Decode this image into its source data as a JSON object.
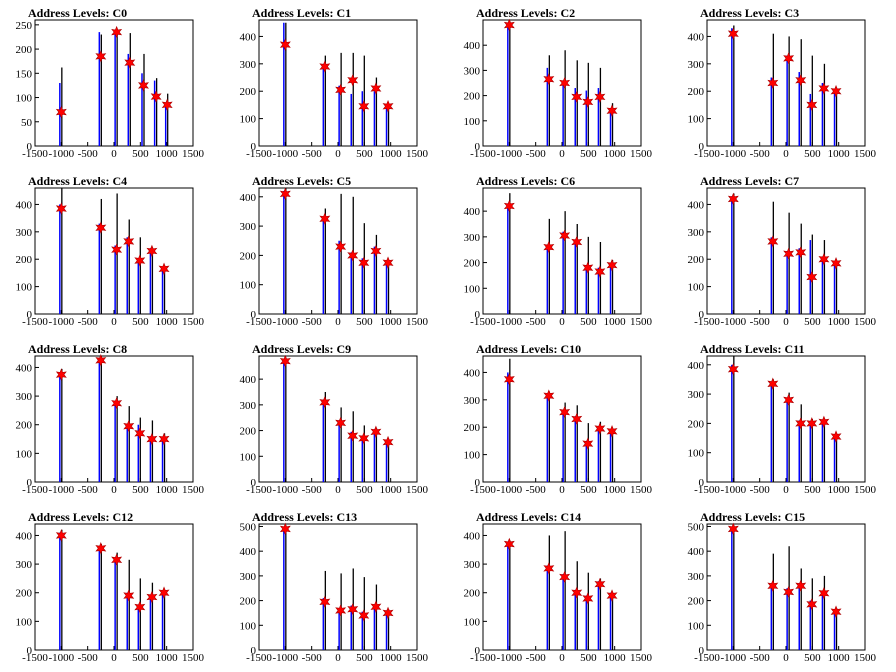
{
  "colors": {
    "hist_black": "#000000",
    "hist_blue": "#0000ff",
    "marker_fill": "#ff0000",
    "marker_stroke": "#aa0000",
    "axis": "#000000"
  },
  "chart_data": [
    {
      "type": "bar",
      "title": "Address Levels: C0",
      "xlim": [
        -1500,
        1500
      ],
      "xticks": [
        -1500,
        -1000,
        -500,
        0,
        500,
        1000,
        1500
      ],
      "ylim": [
        0,
        260
      ],
      "yticks": [
        0,
        50,
        100,
        150,
        200,
        250
      ],
      "bins_x": [
        -1000,
        -250,
        50,
        300,
        560,
        800,
        1010
      ],
      "black_values": [
        162,
        230,
        235,
        233,
        190,
        140,
        108
      ],
      "blue_values": [
        130,
        235,
        230,
        190,
        150,
        135,
        80
      ],
      "marker_values": [
        70,
        185,
        235,
        172,
        125,
        102,
        85
      ]
    },
    {
      "type": "bar",
      "title": "Address Levels: C1",
      "xlim": [
        -1500,
        1500
      ],
      "xticks": [
        -1500,
        -1000,
        -500,
        0,
        500,
        1000,
        1500
      ],
      "ylim": [
        0,
        460
      ],
      "yticks": [
        0,
        100,
        200,
        300,
        400
      ],
      "bins_x": [
        -1000,
        -250,
        50,
        280,
        490,
        720,
        950
      ],
      "black_values": [
        450,
        330,
        340,
        340,
        330,
        250,
        150
      ],
      "blue_values": [
        450,
        300,
        220,
        190,
        200,
        200,
        150
      ],
      "marker_values": [
        370,
        290,
        205,
        240,
        145,
        210,
        145
      ]
    },
    {
      "type": "bar",
      "title": "Address Levels: C2",
      "xlim": [
        -1500,
        1500
      ],
      "xticks": [
        -1500,
        -1000,
        -500,
        0,
        500,
        1000,
        1500
      ],
      "ylim": [
        0,
        500
      ],
      "yticks": [
        0,
        100,
        200,
        300,
        400
      ],
      "bins_x": [
        -1000,
        -250,
        50,
        280,
        490,
        720,
        950
      ],
      "black_values": [
        490,
        360,
        380,
        340,
        330,
        310,
        170
      ],
      "blue_values": [
        470,
        310,
        260,
        230,
        220,
        230,
        150
      ],
      "marker_values": [
        480,
        265,
        250,
        195,
        175,
        195,
        140
      ]
    },
    {
      "type": "bar",
      "title": "Address Levels: C3",
      "xlim": [
        -1500,
        1500
      ],
      "xticks": [
        -1500,
        -1000,
        -500,
        0,
        500,
        1000,
        1500
      ],
      "ylim": [
        0,
        460
      ],
      "yticks": [
        0,
        100,
        200,
        300,
        400
      ],
      "bins_x": [
        -1000,
        -250,
        50,
        280,
        490,
        720,
        950
      ],
      "black_values": [
        440,
        410,
        400,
        390,
        330,
        300,
        210
      ],
      "blue_values": [
        430,
        250,
        330,
        270,
        190,
        230,
        200
      ],
      "marker_values": [
        410,
        230,
        320,
        240,
        150,
        210,
        200
      ]
    },
    {
      "type": "bar",
      "title": "Address Levels: C4",
      "xlim": [
        -1500,
        1500
      ],
      "xticks": [
        -1500,
        -1000,
        -500,
        0,
        500,
        1000,
        1500
      ],
      "ylim": [
        0,
        460
      ],
      "yticks": [
        0,
        100,
        200,
        300,
        400
      ],
      "bins_x": [
        -1000,
        -250,
        50,
        280,
        490,
        720,
        950
      ],
      "black_values": [
        460,
        420,
        440,
        345,
        280,
        240,
        175
      ],
      "blue_values": [
        400,
        330,
        250,
        280,
        200,
        240,
        170
      ],
      "marker_values": [
        385,
        315,
        235,
        265,
        195,
        230,
        165
      ]
    },
    {
      "type": "bar",
      "title": "Address Levels: C5",
      "xlim": [
        -1500,
        1500
      ],
      "xticks": [
        -1500,
        -1000,
        -500,
        0,
        500,
        1000,
        1500
      ],
      "ylim": [
        0,
        430
      ],
      "yticks": [
        0,
        100,
        200,
        300,
        400
      ],
      "bins_x": [
        -1000,
        -250,
        50,
        280,
        490,
        720,
        950
      ],
      "black_values": [
        430,
        360,
        410,
        400,
        310,
        270,
        180
      ],
      "blue_values": [
        420,
        330,
        250,
        210,
        190,
        230,
        180
      ],
      "marker_values": [
        410,
        325,
        230,
        200,
        175,
        215,
        175
      ]
    },
    {
      "type": "bar",
      "title": "Address Levels: C6",
      "xlim": [
        -1500,
        1500
      ],
      "xticks": [
        -1500,
        -1000,
        -500,
        0,
        500,
        1000,
        1500
      ],
      "ylim": [
        0,
        490
      ],
      "yticks": [
        0,
        100,
        200,
        300,
        400
      ],
      "bins_x": [
        -1000,
        -250,
        50,
        280,
        490,
        720,
        950
      ],
      "black_values": [
        470,
        370,
        400,
        350,
        300,
        280,
        210
      ],
      "blue_values": [
        430,
        270,
        320,
        290,
        190,
        180,
        200
      ],
      "marker_values": [
        420,
        260,
        305,
        280,
        180,
        165,
        190
      ]
    },
    {
      "type": "bar",
      "title": "Address Levels: C7",
      "xlim": [
        -1500,
        1500
      ],
      "xticks": [
        -1500,
        -1000,
        -500,
        0,
        500,
        1000,
        1500
      ],
      "ylim": [
        0,
        460
      ],
      "yticks": [
        0,
        100,
        200,
        300,
        400
      ],
      "bins_x": [
        -1000,
        -250,
        50,
        280,
        490,
        720,
        950
      ],
      "black_values": [
        440,
        410,
        370,
        330,
        290,
        270,
        190
      ],
      "blue_values": [
        430,
        280,
        230,
        240,
        270,
        210,
        190
      ],
      "marker_values": [
        420,
        265,
        220,
        225,
        135,
        200,
        185
      ]
    },
    {
      "type": "bar",
      "title": "Address Levels: C8",
      "xlim": [
        -1500,
        1500
      ],
      "xticks": [
        -1500,
        -1000,
        -500,
        0,
        500,
        1000,
        1500
      ],
      "ylim": [
        0,
        440
      ],
      "yticks": [
        0,
        100,
        200,
        300,
        400
      ],
      "bins_x": [
        -1000,
        -250,
        50,
        280,
        490,
        720,
        950
      ],
      "black_values": [
        395,
        440,
        300,
        265,
        225,
        215,
        170
      ],
      "blue_values": [
        380,
        430,
        280,
        200,
        200,
        160,
        150
      ],
      "marker_values": [
        375,
        425,
        275,
        195,
        170,
        150,
        150
      ]
    },
    {
      "type": "bar",
      "title": "Address Levels: C9",
      "xlim": [
        -1500,
        1500
      ],
      "xticks": [
        -1500,
        -1000,
        -500,
        0,
        500,
        1000,
        1500
      ],
      "ylim": [
        0,
        490
      ],
      "yticks": [
        0,
        100,
        200,
        300,
        400
      ],
      "bins_x": [
        -1000,
        -250,
        50,
        280,
        490,
        720,
        950
      ],
      "black_values": [
        480,
        350,
        290,
        275,
        220,
        210,
        165
      ],
      "blue_values": [
        470,
        320,
        240,
        195,
        180,
        205,
        160
      ],
      "marker_values": [
        470,
        310,
        230,
        180,
        170,
        195,
        155
      ]
    },
    {
      "type": "bar",
      "title": "Address Levels: C10",
      "xlim": [
        -1500,
        1500
      ],
      "xticks": [
        -1500,
        -1000,
        -500,
        0,
        500,
        1000,
        1500
      ],
      "ylim": [
        0,
        460
      ],
      "yticks": [
        0,
        100,
        200,
        300,
        400
      ],
      "bins_x": [
        -1000,
        -250,
        50,
        280,
        490,
        720,
        950
      ],
      "black_values": [
        450,
        330,
        290,
        280,
        215,
        220,
        195
      ],
      "blue_values": [
        400,
        320,
        260,
        240,
        150,
        200,
        190
      ],
      "marker_values": [
        375,
        315,
        255,
        230,
        140,
        195,
        185
      ]
    },
    {
      "type": "bar",
      "title": "Address Levels: C11",
      "xlim": [
        -1500,
        1500
      ],
      "xticks": [
        -1500,
        -1000,
        -500,
        0,
        500,
        1000,
        1500
      ],
      "ylim": [
        0,
        430
      ],
      "yticks": [
        0,
        100,
        200,
        300,
        400
      ],
      "bins_x": [
        -1000,
        -250,
        50,
        280,
        490,
        720,
        950
      ],
      "black_values": [
        430,
        350,
        305,
        265,
        215,
        215,
        165
      ],
      "blue_values": [
        400,
        340,
        285,
        210,
        200,
        210,
        160
      ],
      "marker_values": [
        385,
        335,
        280,
        200,
        200,
        205,
        155
      ]
    },
    {
      "type": "bar",
      "title": "Address Levels: C12",
      "xlim": [
        -1500,
        1500
      ],
      "xticks": [
        -1500,
        -1000,
        -500,
        0,
        500,
        1000,
        1500
      ],
      "ylim": [
        0,
        440
      ],
      "yticks": [
        0,
        100,
        200,
        300,
        400
      ],
      "bins_x": [
        -1000,
        -250,
        50,
        280,
        490,
        720,
        950
      ],
      "black_values": [
        420,
        370,
        340,
        315,
        250,
        235,
        205
      ],
      "blue_values": [
        410,
        360,
        320,
        200,
        155,
        190,
        200
      ],
      "marker_values": [
        400,
        355,
        315,
        190,
        150,
        185,
        200
      ]
    },
    {
      "type": "bar",
      "title": "Address Levels: C13",
      "xlim": [
        -1500,
        1500
      ],
      "xticks": [
        -1500,
        -1000,
        -500,
        0,
        500,
        1000,
        1500
      ],
      "ylim": [
        0,
        510
      ],
      "yticks": [
        0,
        100,
        200,
        300,
        400,
        500
      ],
      "bins_x": [
        -1000,
        -250,
        50,
        280,
        490,
        720,
        950
      ],
      "black_values": [
        500,
        320,
        310,
        330,
        295,
        265,
        165
      ],
      "blue_values": [
        495,
        210,
        170,
        180,
        155,
        180,
        160
      ],
      "marker_values": [
        490,
        195,
        160,
        165,
        140,
        175,
        150
      ]
    },
    {
      "type": "bar",
      "title": "Address Levels: C14",
      "xlim": [
        -1500,
        1500
      ],
      "xticks": [
        -1500,
        -1000,
        -500,
        0,
        500,
        1000,
        1500
      ],
      "ylim": [
        0,
        440
      ],
      "yticks": [
        0,
        100,
        200,
        300,
        400
      ],
      "bins_x": [
        -1000,
        -250,
        50,
        280,
        490,
        720,
        950
      ],
      "black_values": [
        380,
        400,
        415,
        310,
        270,
        250,
        200
      ],
      "blue_values": [
        375,
        295,
        265,
        210,
        190,
        240,
        200
      ],
      "marker_values": [
        370,
        285,
        255,
        200,
        180,
        230,
        190
      ]
    },
    {
      "type": "bar",
      "title": "Address Levels: C15",
      "xlim": [
        -1500,
        1500
      ],
      "xticks": [
        -1500,
        -1000,
        -500,
        0,
        500,
        1000,
        1500
      ],
      "ylim": [
        0,
        510
      ],
      "yticks": [
        0,
        100,
        200,
        300,
        400,
        500
      ],
      "bins_x": [
        -1000,
        -250,
        50,
        280,
        490,
        720,
        950
      ],
      "black_values": [
        500,
        390,
        420,
        330,
        290,
        300,
        170
      ],
      "blue_values": [
        495,
        270,
        250,
        270,
        200,
        240,
        165
      ],
      "marker_values": [
        490,
        260,
        235,
        260,
        185,
        230,
        155
      ]
    }
  ]
}
